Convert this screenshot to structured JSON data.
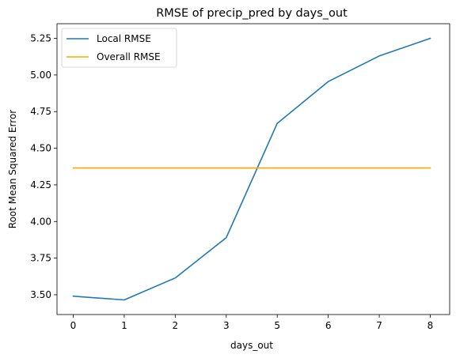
{
  "chart_data": {
    "type": "line",
    "title": "RMSE of precip_pred by days_out",
    "xlabel": "days_out",
    "ylabel": "Root Mean Squared Error",
    "categories": [
      "0",
      "1",
      "2",
      "3",
      "5",
      "6",
      "7",
      "8"
    ],
    "ylim": [
      3.365,
      5.35
    ],
    "yticks": [
      3.5,
      3.75,
      4.0,
      4.25,
      4.5,
      4.75,
      5.0,
      5.25
    ],
    "ytick_labels": [
      "3.50",
      "3.75",
      "4.00",
      "4.25",
      "4.50",
      "4.75",
      "5.00",
      "5.25"
    ],
    "grid": false,
    "legend_position": "top-left",
    "series": [
      {
        "name": "Local RMSE",
        "color": "#1f77b4",
        "values": [
          3.49,
          3.465,
          3.615,
          3.89,
          4.67,
          4.955,
          5.13,
          5.25
        ]
      },
      {
        "name": "Overall RMSE",
        "color": "#ffa500",
        "values": [
          4.365,
          4.365,
          4.365,
          4.365,
          4.365,
          4.365,
          4.365,
          4.365
        ]
      }
    ]
  }
}
